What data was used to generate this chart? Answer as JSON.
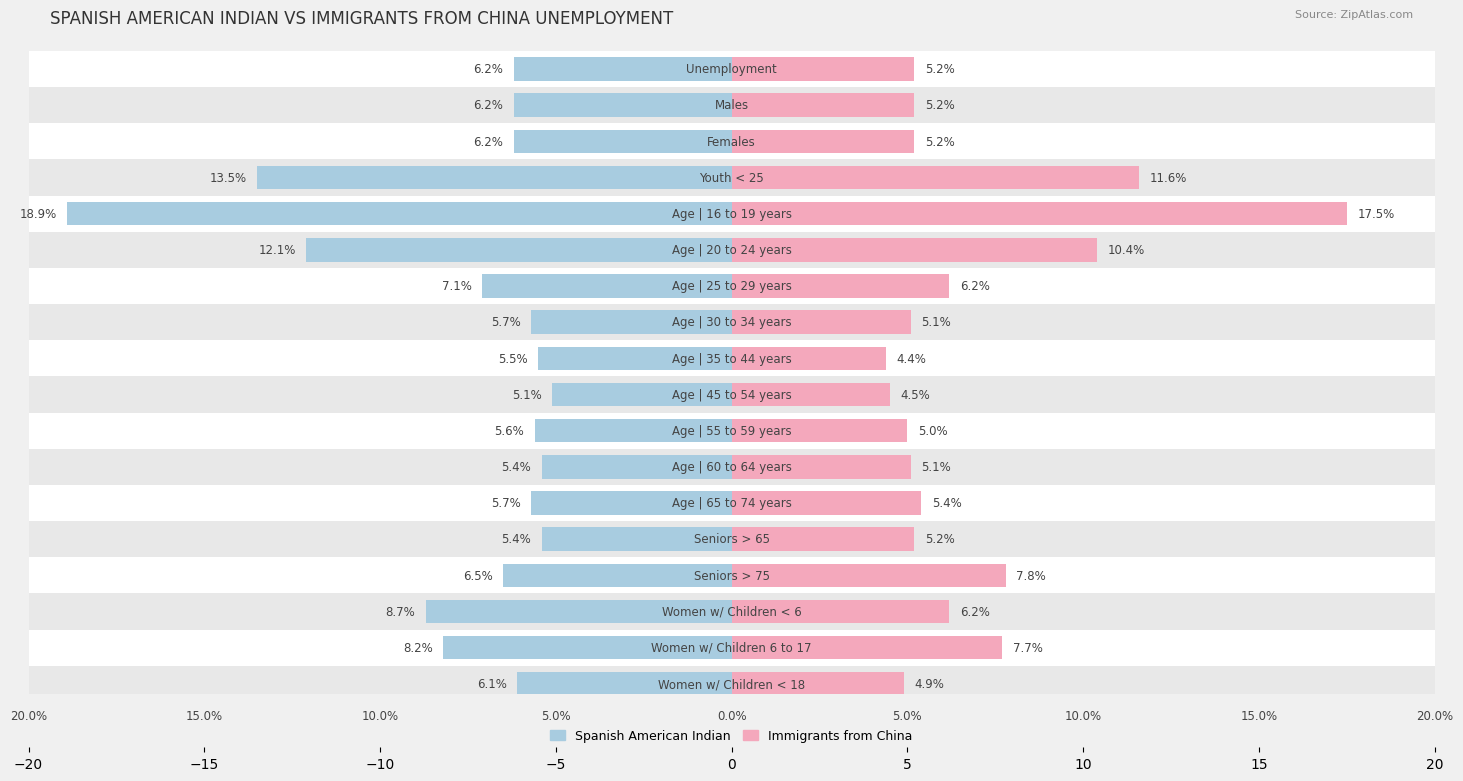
{
  "title": "SPANISH AMERICAN INDIAN VS IMMIGRANTS FROM CHINA UNEMPLOYMENT",
  "source": "Source: ZipAtlas.com",
  "categories": [
    "Unemployment",
    "Males",
    "Females",
    "Youth < 25",
    "Age | 16 to 19 years",
    "Age | 20 to 24 years",
    "Age | 25 to 29 years",
    "Age | 30 to 34 years",
    "Age | 35 to 44 years",
    "Age | 45 to 54 years",
    "Age | 55 to 59 years",
    "Age | 60 to 64 years",
    "Age | 65 to 74 years",
    "Seniors > 65",
    "Seniors > 75",
    "Women w/ Children < 6",
    "Women w/ Children 6 to 17",
    "Women w/ Children < 18"
  ],
  "left_values": [
    6.2,
    6.2,
    6.2,
    13.5,
    18.9,
    12.1,
    7.1,
    5.7,
    5.5,
    5.1,
    5.6,
    5.4,
    5.7,
    5.4,
    6.5,
    8.7,
    8.2,
    6.1
  ],
  "right_values": [
    5.2,
    5.2,
    5.2,
    11.6,
    17.5,
    10.4,
    6.2,
    5.1,
    4.4,
    4.5,
    5.0,
    5.1,
    5.4,
    5.2,
    7.8,
    6.2,
    7.7,
    4.9
  ],
  "left_color": "#a8cce0",
  "right_color": "#f4a8bc",
  "left_label": "Spanish American Indian",
  "right_label": "Immigrants from China",
  "max_val": 20.0,
  "bg_color": "#f0f0f0",
  "row_color_odd": "#ffffff",
  "row_color_even": "#e8e8e8",
  "title_fontsize": 12,
  "label_fontsize": 8.5,
  "value_fontsize": 8.5
}
